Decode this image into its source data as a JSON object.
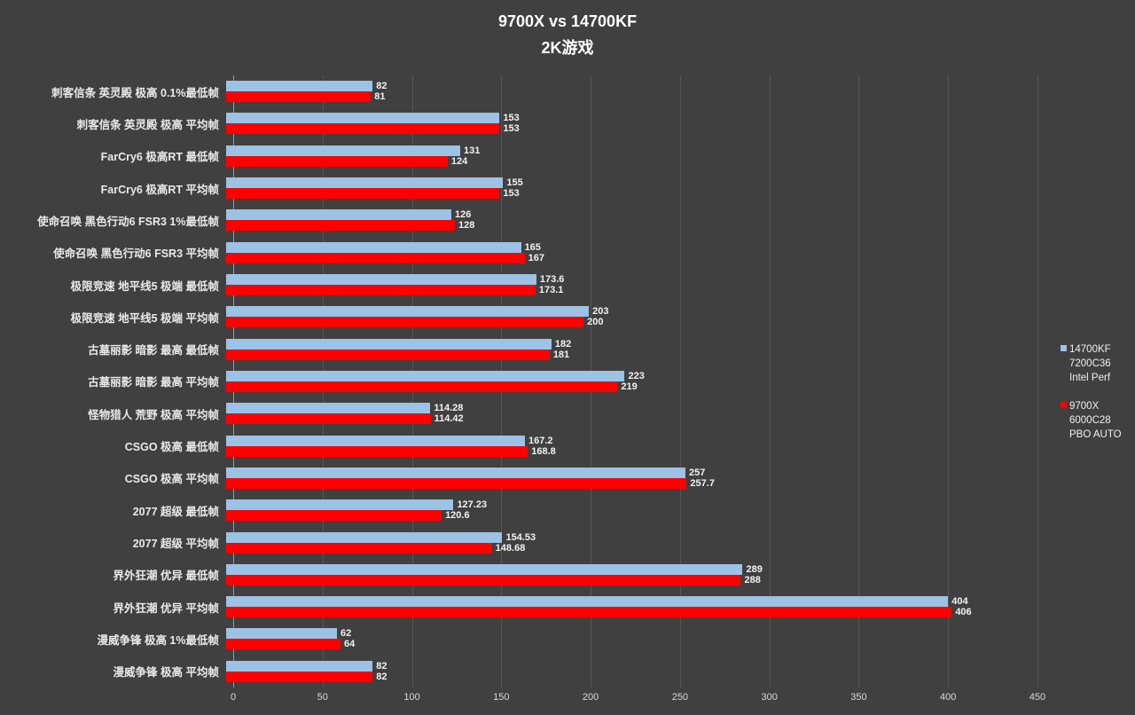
{
  "chart": {
    "title": "9700X vs 14700KF",
    "subtitle": "2K游戏"
  },
  "legend": {
    "items": [
      {
        "color": "#9CC2E5",
        "lines": [
          "14700KF",
          "7200C36",
          "Intel Perf"
        ]
      },
      {
        "color": "#FF0000",
        "lines": [
          "9700X",
          "6000C28",
          "PBO AUTO"
        ]
      }
    ]
  },
  "chart_data": {
    "type": "bar",
    "orientation": "horizontal",
    "title": "9700X vs 14700KF",
    "subtitle": "2K游戏",
    "xlabel": "",
    "ylabel": "",
    "xlim": [
      0,
      450
    ],
    "xticks": [
      0,
      50,
      100,
      150,
      200,
      250,
      300,
      350,
      400,
      450
    ],
    "grid": true,
    "legend_position": "right",
    "categories": [
      "刺客信条 英灵殿 极高 0.1%最低帧",
      "刺客信条 英灵殿 极高 平均帧",
      "FarCry6 极高RT 最低帧",
      "FarCry6 极高RT 平均帧",
      "使命召唤 黑色行动6 FSR3 1%最低帧",
      "使命召唤 黑色行动6 FSR3 平均帧",
      "极限竞速 地平线5 极端 最低帧",
      "极限竞速 地平线5 极端 平均帧",
      "古墓丽影 暗影 最高 最低帧",
      "古墓丽影 暗影 最高 平均帧",
      "怪物猎人 荒野 极高 平均帧",
      "CSGO 极高 最低帧",
      "CSGO 极高 平均帧",
      "2077 超级 最低帧",
      "2077 超级 平均帧",
      "界外狂潮 优异 最低帧",
      "界外狂潮 优异 平均帧",
      "漫威争锋 极高 1%最低帧",
      "漫威争锋 极高 平均帧"
    ],
    "series": [
      {
        "name": "14700KF 7200C36 Intel Perf",
        "color": "#9CC2E5",
        "values": [
          82,
          153,
          131,
          155,
          126,
          165,
          173.6,
          203,
          182,
          223,
          114.28,
          167.2,
          257,
          127.23,
          154.53,
          289,
          404,
          62,
          82
        ],
        "labels": [
          "82",
          "153",
          "131",
          "155",
          "126",
          "165",
          "173.6",
          "203",
          "182",
          "223",
          "114.28",
          "167.2",
          "257",
          "127.23",
          "154.53",
          "289",
          "404",
          "62",
          "82"
        ]
      },
      {
        "name": "9700X 6000C28 PBO AUTO",
        "color": "#FF0000",
        "values": [
          81,
          153,
          124,
          153,
          128,
          167,
          173.1,
          200,
          181,
          219,
          114.42,
          168.8,
          257.7,
          120.6,
          148.68,
          288,
          406,
          64,
          82
        ],
        "labels": [
          "81",
          "153",
          "124",
          "153",
          "128",
          "167",
          "173.1",
          "200",
          "181",
          "219",
          "114.42",
          "168.8",
          "257.7",
          "120.6",
          "148.68",
          "288",
          "406",
          "64",
          "82"
        ]
      }
    ]
  }
}
